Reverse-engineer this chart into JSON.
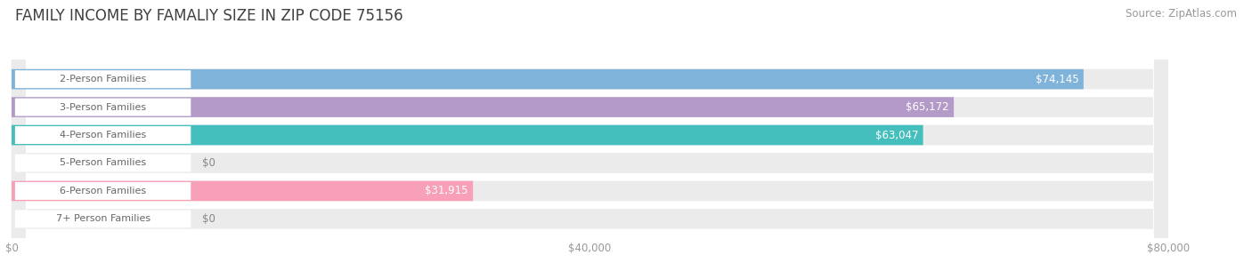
{
  "title": "FAMILY INCOME BY FAMALIY SIZE IN ZIP CODE 75156",
  "source": "Source: ZipAtlas.com",
  "categories": [
    "2-Person Families",
    "3-Person Families",
    "4-Person Families",
    "5-Person Families",
    "6-Person Families",
    "7+ Person Families"
  ],
  "values": [
    74145,
    65172,
    63047,
    0,
    31915,
    0
  ],
  "bar_colors": [
    "#7fb3d9",
    "#b49ac8",
    "#45bfbe",
    "#a8a8e0",
    "#f7a0b8",
    "#f5cc9a"
  ],
  "value_labels": [
    "$74,145",
    "$65,172",
    "$63,047",
    "$0",
    "$31,915",
    "$0"
  ],
  "xlim_max": 80000,
  "xticks": [
    0,
    40000,
    80000
  ],
  "xtick_labels": [
    "$0",
    "$40,000",
    "$80,000"
  ],
  "page_bg": "#ffffff",
  "bar_bg_color": "#ebebeb",
  "bar_bg_shadow": "#d8d8d8",
  "title_fontsize": 12,
  "source_fontsize": 8.5,
  "bar_height": 0.72,
  "bar_label_fontsize": 8.5,
  "label_box_color": "#ffffff",
  "label_box_edge": "#dddddd",
  "label_text_color": "#666666",
  "grid_color": "#ffffff",
  "value_label_inside_color": "#ffffff",
  "value_label_outside_color": "#888888",
  "title_color": "#404040",
  "source_color": "#999999"
}
